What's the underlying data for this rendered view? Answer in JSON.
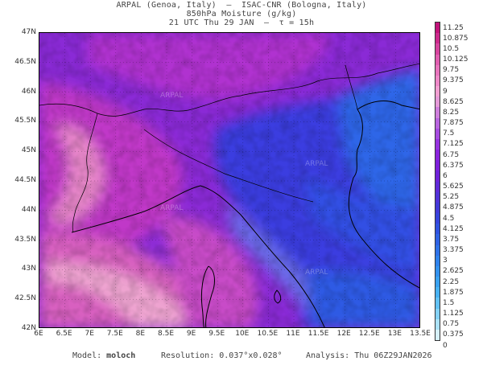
{
  "header": {
    "line1": "ARPAL (Genoa, Italy)  –  ISAC-CNR (Bologna, Italy)",
    "line2": "850hPa Moisture (g/kg)",
    "line3": "21 UTC Thu 29 JAN  –  τ = 15h"
  },
  "map": {
    "watermark": "ARPAL",
    "lat_labels": [
      "47N",
      "46.5N",
      "46N",
      "45.5N",
      "45N",
      "44.5N",
      "44N",
      "43.5N",
      "43N",
      "42.5N",
      "42N"
    ],
    "lon_labels": [
      "6E",
      "6.5E",
      "7E",
      "7.5E",
      "8E",
      "8.5E",
      "9E",
      "9.5E",
      "10E",
      "10.5E",
      "11E",
      "11.5E",
      "12E",
      "12.5E",
      "13E",
      "13.5E"
    ],
    "lat_range": [
      42,
      47
    ],
    "lon_range": [
      6,
      13.5
    ]
  },
  "colorbar": {
    "labels": [
      "11.25",
      "10.875",
      "10.5",
      "10.125",
      "9.75",
      "9.375",
      "9",
      "8.625",
      "8.25",
      "7.875",
      "7.5",
      "7.125",
      "6.75",
      "6.375",
      "6",
      "5.625",
      "5.25",
      "4.875",
      "4.5",
      "4.125",
      "3.75",
      "3.375",
      "3",
      "2.625",
      "2.25",
      "1.875",
      "1.5",
      "1.125",
      "0.75",
      "0.375",
      "0"
    ],
    "colors": [
      "#c2137a",
      "#cc2a8c",
      "#d6449e",
      "#e05eb0",
      "#e874bd",
      "#ee88c8",
      "#f29fd2",
      "#e59ad8",
      "#cf7fdc",
      "#b865df",
      "#a64ce0",
      "#9633e0",
      "#8a24dd",
      "#7d1fdb",
      "#6e22d9",
      "#5f2ad8",
      "#5032d8",
      "#423ad8",
      "#3644dc",
      "#2f52e0",
      "#2f62e4",
      "#2f72e8",
      "#2f82ec",
      "#3392ee",
      "#3aa2f0",
      "#48b2f2",
      "#62c2f4",
      "#84d2f6",
      "#abe2f8",
      "#d6f0fa"
    ]
  },
  "footer": {
    "model_label": "Model:",
    "model_value": "moloch",
    "resolution_label": "Resolution:",
    "resolution_value": "0.037°x0.028°",
    "analysis_label": "Analysis:",
    "analysis_value": "Thu 06Z29JAN2026"
  }
}
